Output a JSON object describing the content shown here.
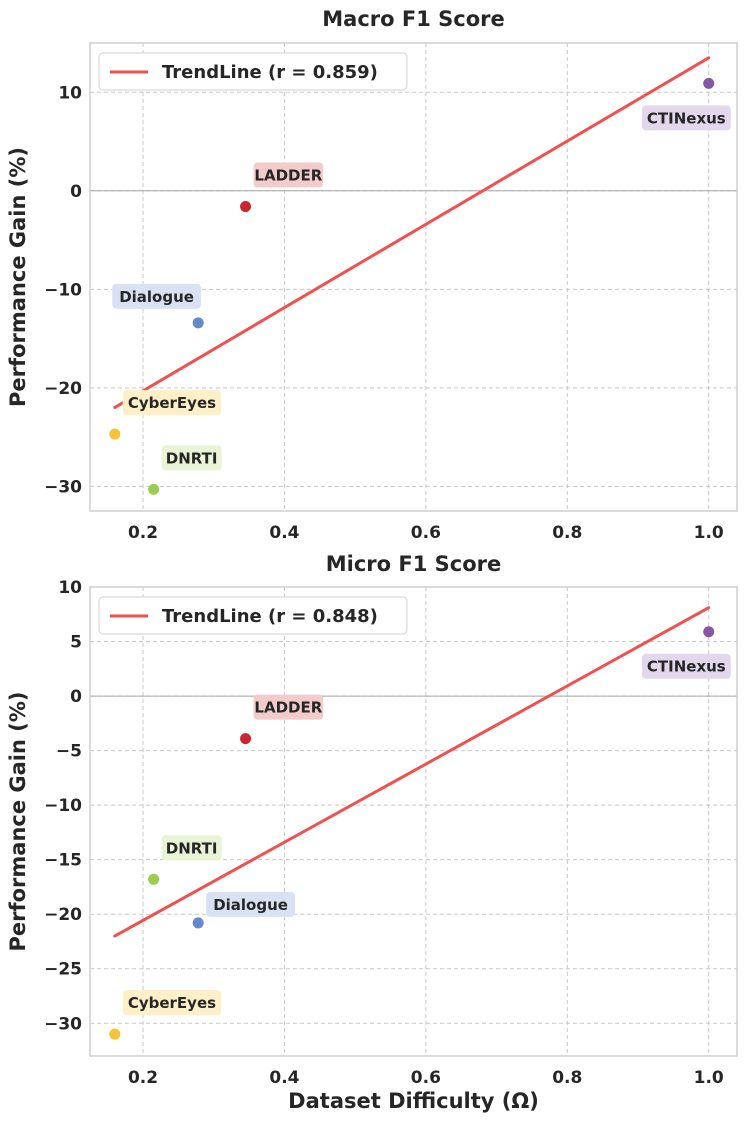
{
  "chart_data": [
    {
      "type": "scatter",
      "title": "Macro F1 Score",
      "xlabel": "",
      "ylabel": "Performance Gain (%)",
      "xlim": [
        0.125,
        1.04
      ],
      "ylim": [
        -32.5,
        15
      ],
      "xticks": [
        0.2,
        0.4,
        0.6,
        0.8,
        1.0
      ],
      "xtick_labels": [
        "0.2",
        "0.4",
        "0.6",
        "0.8",
        "1.0"
      ],
      "yticks": [
        10,
        0,
        -10,
        -20,
        -30
      ],
      "ytick_labels": [
        "10",
        "0",
        "−10",
        "−20",
        "−30"
      ],
      "legend": {
        "label": "TrendLine (r = 0.859)",
        "placement": "top-left"
      },
      "trendline": {
        "x": [
          0.16,
          1.0
        ],
        "y": [
          -22.0,
          13.5
        ]
      },
      "points": [
        {
          "name": "CTINexus",
          "x": 1.0,
          "y": 10.9,
          "color": "#8856a7",
          "label_bg": "#e2d7ec",
          "label_pos": "below-left"
        },
        {
          "name": "LADDER",
          "x": 0.345,
          "y": -1.6,
          "color": "#c8282d",
          "label_bg": "#f2cbcb",
          "label_pos": "above-right"
        },
        {
          "name": "Dialogue",
          "x": 0.278,
          "y": -13.4,
          "color": "#6688cc",
          "label_bg": "#d9e2f2",
          "label_pos": "above-left"
        },
        {
          "name": "CyberEyes",
          "x": 0.16,
          "y": -24.7,
          "color": "#f7c23a",
          "label_bg": "#fdf0c8",
          "label_pos": "above-right"
        },
        {
          "name": "DNRTI",
          "x": 0.215,
          "y": -30.3,
          "color": "#9acd50",
          "label_bg": "#e9f4d6",
          "label_pos": "above-right"
        }
      ]
    },
    {
      "type": "scatter",
      "title": "Micro F1 Score",
      "xlabel": "Dataset Difficulty (Ω)",
      "ylabel": "Performance Gain (%)",
      "xlim": [
        0.125,
        1.04
      ],
      "ylim": [
        -33,
        10
      ],
      "xticks": [
        0.2,
        0.4,
        0.6,
        0.8,
        1.0
      ],
      "xtick_labels": [
        "0.2",
        "0.4",
        "0.6",
        "0.8",
        "1.0"
      ],
      "yticks": [
        10,
        5,
        0,
        -5,
        -10,
        -15,
        -20,
        -25,
        -30
      ],
      "ytick_labels": [
        "10",
        "5",
        "0",
        "−5",
        "−10",
        "−15",
        "−20",
        "−25",
        "−30"
      ],
      "legend": {
        "label": "TrendLine (r = 0.848)",
        "placement": "top-left"
      },
      "trendline": {
        "x": [
          0.16,
          1.0
        ],
        "y": [
          -22.0,
          8.1
        ]
      },
      "points": [
        {
          "name": "CTINexus",
          "x": 1.0,
          "y": 5.9,
          "color": "#8856a7",
          "label_bg": "#e2d7ec",
          "label_pos": "below-left"
        },
        {
          "name": "LADDER",
          "x": 0.345,
          "y": -3.9,
          "color": "#c8282d",
          "label_bg": "#f2cbcb",
          "label_pos": "above-right"
        },
        {
          "name": "DNRTI",
          "x": 0.215,
          "y": -16.8,
          "color": "#9acd50",
          "label_bg": "#e9f4d6",
          "label_pos": "above-right"
        },
        {
          "name": "Dialogue",
          "x": 0.278,
          "y": -20.8,
          "color": "#6688cc",
          "label_bg": "#d9e2f2",
          "label_pos": "right"
        },
        {
          "name": "CyberEyes",
          "x": 0.16,
          "y": -31.0,
          "color": "#f7c23a",
          "label_bg": "#fdf0c8",
          "label_pos": "above-right"
        }
      ]
    }
  ],
  "colors": {
    "trendline": "#f05050",
    "text": "#262626"
  }
}
